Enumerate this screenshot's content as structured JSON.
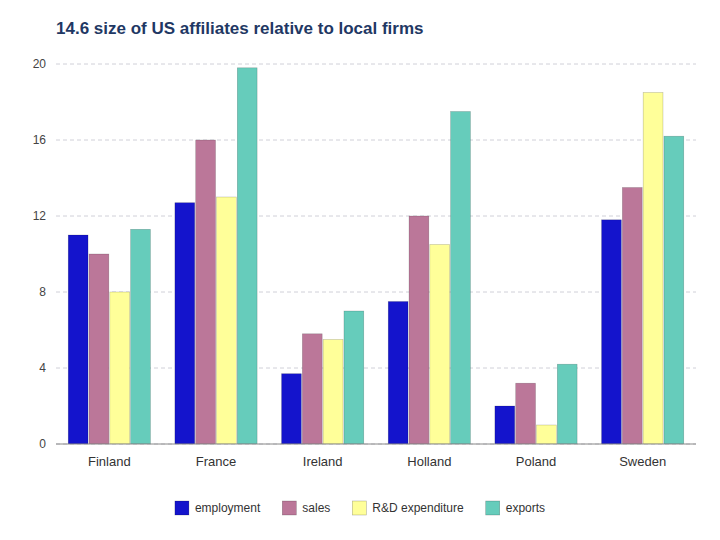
{
  "chart_data": {
    "type": "bar",
    "title": "14.6 size of US affiliates relative to local firms",
    "categories": [
      "Finland",
      "France",
      "Ireland",
      "Holland",
      "Poland",
      "Sweden"
    ],
    "series": [
      {
        "name": "employment",
        "color": "#1414CC",
        "values": [
          11.0,
          12.7,
          3.7,
          7.5,
          2.0,
          11.8
        ]
      },
      {
        "name": "sales",
        "color": "#BB7799",
        "values": [
          10.0,
          16.0,
          5.8,
          12.0,
          3.2,
          13.5
        ]
      },
      {
        "name": "R&D expenditure",
        "color": "#FFFF99",
        "values": [
          8.0,
          13.0,
          5.5,
          10.5,
          1.0,
          18.5
        ]
      },
      {
        "name": "exports",
        "color": "#66CCBB",
        "values": [
          11.3,
          19.8,
          7.0,
          17.5,
          4.2,
          16.2
        ]
      }
    ],
    "ylim": [
      0,
      20
    ],
    "yticks": [
      0,
      4,
      8,
      12,
      16,
      20
    ],
    "grid": true,
    "legend": "bottom"
  }
}
